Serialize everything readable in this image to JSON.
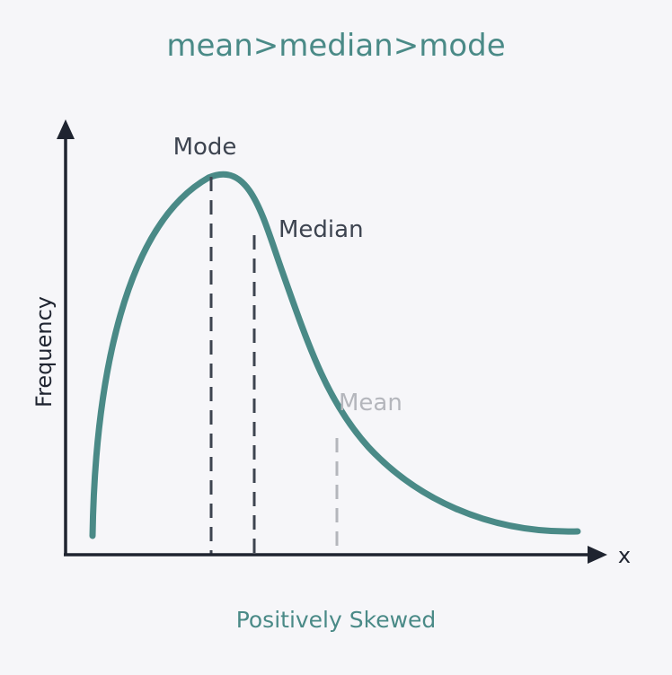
{
  "title": "mean>median>mode",
  "caption": "Positively Skewed",
  "axes": {
    "y_label": "Frequency",
    "x_label": "x"
  },
  "markers": [
    {
      "key": "mode",
      "label": "Mode",
      "line_color": "#3d4450",
      "label_color": "#3d4450"
    },
    {
      "key": "median",
      "label": "Median",
      "line_color": "#3d4450",
      "label_color": "#3d4450"
    },
    {
      "key": "mean",
      "label": "Mean",
      "line_color": "#b4b6bc",
      "label_color": "#b4b6bc"
    }
  ],
  "colors": {
    "background": "#f6f6f9",
    "curve": "#4a8a87",
    "axis": "#1f2430",
    "title": "#4a8a87"
  }
}
